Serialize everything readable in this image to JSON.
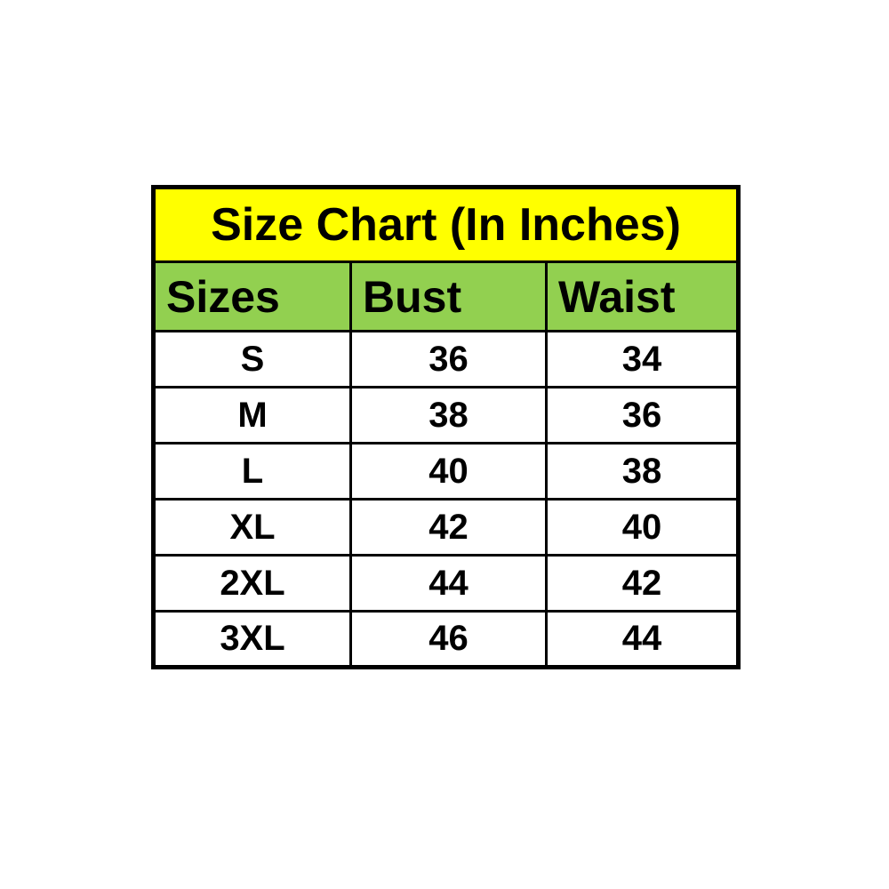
{
  "page": {
    "background": "#ffffff"
  },
  "chart_data": {
    "type": "table",
    "title": "Size Chart (In Inches)",
    "columns": [
      "Sizes",
      "Bust",
      "Waist"
    ],
    "rows": [
      [
        "S",
        "36",
        "34"
      ],
      [
        "M",
        "38",
        "36"
      ],
      [
        "L",
        "40",
        "38"
      ],
      [
        "XL",
        "42",
        "40"
      ],
      [
        "2XL",
        "44",
        "42"
      ],
      [
        "3XL",
        "46",
        "44"
      ]
    ],
    "layout": {
      "title_bg": "#ffff00",
      "header_bg": "#92d050",
      "border_color": "#000000",
      "cell_bg": "#ffffff",
      "text_color": "#000000",
      "page_bg": "#ffffff",
      "grid": "on",
      "header_align": "left",
      "data_align": "center"
    }
  }
}
